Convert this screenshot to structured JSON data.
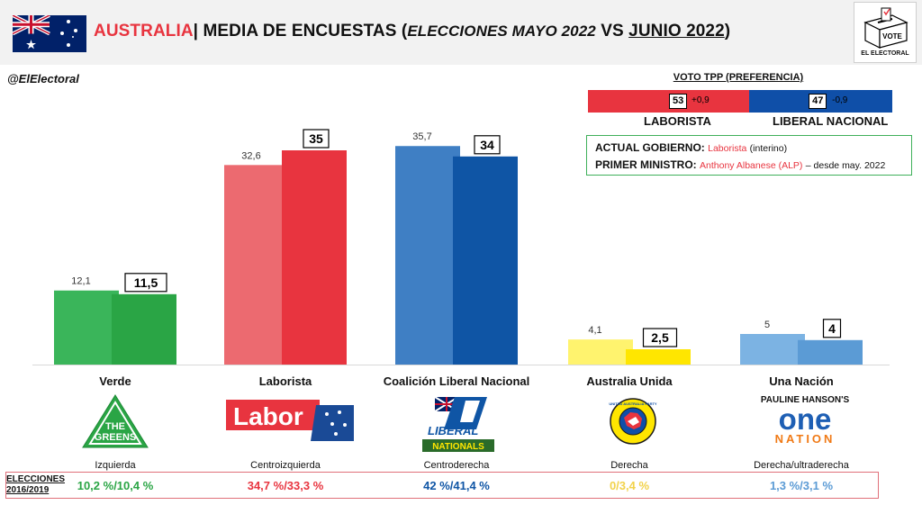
{
  "header": {
    "country": "AUSTRALIA",
    "separator": "| MEDIA DE ENCUESTAS (",
    "elections_italic": "ELECCIONES MAYO 2022",
    "vs": " VS ",
    "june": "JUNIO 2022",
    "close": ")",
    "logo_ballot_text": "VOTE",
    "logo_caption": "EL ELECTORAL"
  },
  "handle": "@ElElectoral",
  "tpp": {
    "title": "VOTO TPP (PREFERENCIA)",
    "left_value": "53",
    "left_change": "+0,9",
    "right_value": "47",
    "right_change": "-0,9",
    "left_label": "LABORISTA",
    "right_label": "LIBERAL NACIONAL",
    "left_share": 53
  },
  "government": {
    "gov_label": "ACTUAL GOBIERNO:",
    "gov_value": "Laborista",
    "gov_note": "(interino)",
    "pm_label": "PRIMER MINISTRO:",
    "pm_value": "Anthony Albanese (ALP)",
    "pm_note": "– desde may. 2022"
  },
  "parties": [
    {
      "name": "Verde",
      "ideology": "Izquierda",
      "elections": "10,2 %/10,4 %",
      "logo_text": [
        "THE",
        "GREENS"
      ]
    },
    {
      "name": "Laborista",
      "ideology": "Centroizquierda",
      "elections": "34,7 %/33,3 %",
      "logo_text": [
        "Labor"
      ]
    },
    {
      "name": "Coalición Liberal Nacional",
      "ideology": "Centroderecha",
      "elections": "42 %/41,4 %",
      "logo_text": [
        "LIBERAL",
        "NATIONALS"
      ]
    },
    {
      "name": "Australia Unida",
      "ideology": "Derecha",
      "elections": "0/3,4 %",
      "logo_text": [
        "UNITED AUSTRALIA PARTY"
      ]
    },
    {
      "name": "Una Nación",
      "ideology": "Derecha/ultraderecha",
      "elections": "1,3 %/3,1 %",
      "logo_text": [
        "PAULINE HANSON'S",
        "one",
        "NATION"
      ]
    }
  ],
  "elections_label": [
    "ELECCIONES",
    "2016/2019"
  ],
  "colors": {
    "green": "#2aa545",
    "green_light": "#3ab55a",
    "red": "#e8343f",
    "red_light": "#ec6a70",
    "blue": "#0f55a5",
    "blue_light": "#3f7fc4",
    "yellow": "#ffe600",
    "yellow_light": "#fff36e",
    "lightblue": "#5b9bd5",
    "lightblue_light": "#7cb3e3"
  },
  "chart_data": {
    "type": "bar",
    "categories": [
      "Verde",
      "Laborista",
      "Coalición Liberal Nacional",
      "Australia Unida",
      "Una Nación"
    ],
    "series": [
      {
        "name": "MAYO 2022",
        "values": [
          12.1,
          32.6,
          35.7,
          4.1,
          5
        ],
        "labels": [
          "12,1",
          "32,6",
          "35,7",
          "4,1",
          "5"
        ]
      },
      {
        "name": "JUNIO 2022",
        "values": [
          11.5,
          35,
          34,
          2.5,
          4
        ],
        "labels": [
          "11,5",
          "35",
          "34",
          "2,5",
          "4"
        ]
      }
    ],
    "ylim": [
      0,
      40
    ],
    "grid": false,
    "legend": "none"
  }
}
